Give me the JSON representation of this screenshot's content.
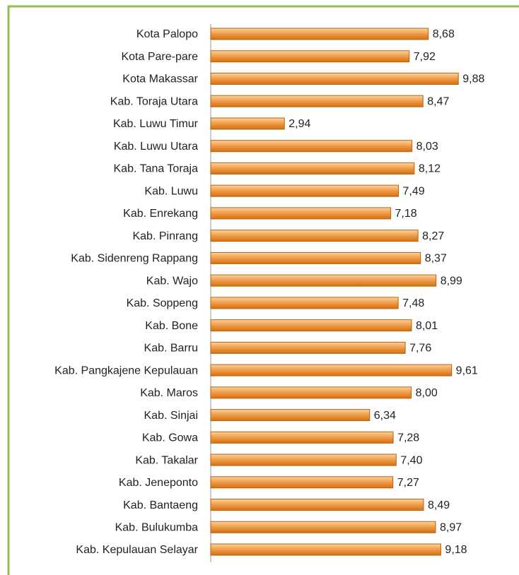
{
  "chart_data": {
    "type": "bar",
    "orientation": "horizontal",
    "categories": [
      "Kota Palopo",
      "Kota Pare-pare",
      "Kota Makassar",
      "Kab. Toraja Utara",
      "Kab. Luwu Timur",
      "Kab. Luwu Utara",
      "Kab. Tana Toraja",
      "Kab. Luwu",
      "Kab. Enrekang",
      "Kab. Pinrang",
      "Kab. Sidenreng Rappang",
      "Kab. Wajo",
      "Kab. Soppeng",
      "Kab. Bone",
      "Kab. Barru",
      "Kab. Pangkajene Kepulauan",
      "Kab. Maros",
      "Kab. Sinjai",
      "Kab. Gowa",
      "Kab. Takalar",
      "Kab. Jeneponto",
      "Kab. Bantaeng",
      "Kab. Bulukumba",
      "Kab. Kepulauan Selayar"
    ],
    "values": [
      8.68,
      7.92,
      9.88,
      8.47,
      2.94,
      8.03,
      8.12,
      7.49,
      7.18,
      8.27,
      8.37,
      8.99,
      7.48,
      8.01,
      7.76,
      9.61,
      8.0,
      6.34,
      7.28,
      7.4,
      7.27,
      8.49,
      8.97,
      9.18
    ],
    "value_labels": [
      "8,68",
      "7,92",
      "9,88",
      "8,47",
      "2,94",
      "8,03",
      "8,12",
      "7,49",
      "7,18",
      "8,27",
      "8,37",
      "8,99",
      "7,48",
      "8,01",
      "7,76",
      "9,61",
      "8,00",
      "6,34",
      "7,28",
      "7,40",
      "7,27",
      "8,49",
      "8,97",
      "9,18"
    ],
    "color": "#e8892a",
    "xlim": [
      0,
      10
    ]
  }
}
